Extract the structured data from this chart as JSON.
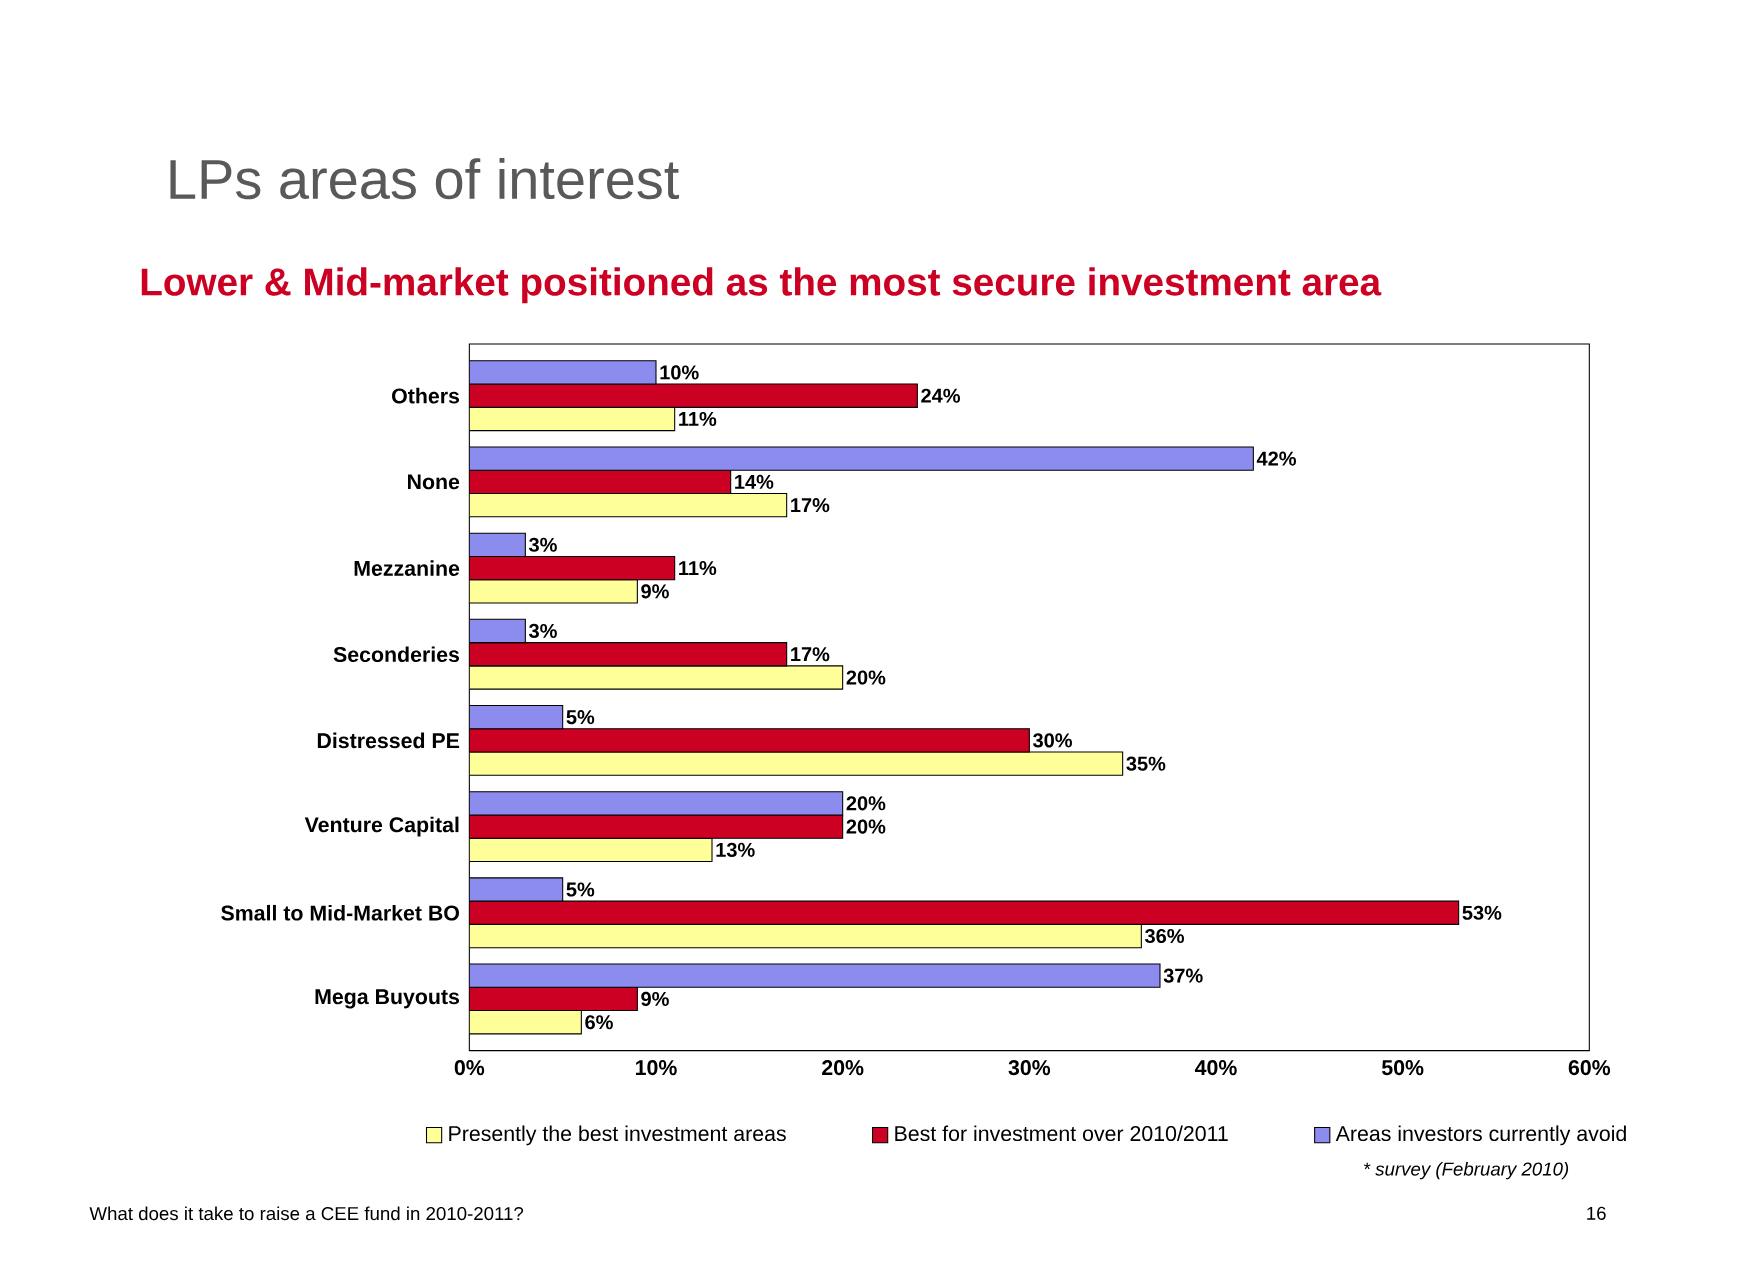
{
  "chart_data": {
    "type": "bar",
    "orientation": "horizontal",
    "title": "LPs areas of interest",
    "subtitle": "Lower & Mid-market positioned as the most secure investment area",
    "categories": [
      "Others",
      "None",
      "Mezzanine",
      "Seconderies",
      "Distressed PE",
      "Venture Capital",
      "Small to Mid-Market BO",
      "Mega Buyouts"
    ],
    "series": [
      {
        "name": "Presently the best investment areas",
        "color": "#ffff99",
        "values": [
          11,
          17,
          9,
          20,
          35,
          13,
          36,
          6
        ],
        "value_labels": [
          "11%",
          "17%",
          "9%",
          "20%",
          "35%",
          "13%",
          "36%",
          "6%"
        ]
      },
      {
        "name": "Best for investment over 2010/2011",
        "color": "#cc0022",
        "values": [
          24,
          14,
          11,
          17,
          30,
          20,
          53,
          9
        ],
        "value_labels": [
          "24%",
          "14%",
          "11%",
          "17%",
          "30%",
          "20%",
          "53%",
          "9%"
        ]
      },
      {
        "name": "Areas investors currently avoid",
        "color": "#8c8cee",
        "values": [
          10,
          42,
          3,
          3,
          5,
          20,
          5,
          37
        ],
        "value_labels": [
          "10%",
          "42%",
          "3%",
          "3%",
          "5%",
          "20%",
          "5%",
          "37%"
        ]
      }
    ],
    "xlim": [
      0,
      60
    ],
    "xticks": [
      {
        "value": 0,
        "label": "0%"
      },
      {
        "value": 10,
        "label": "10%"
      },
      {
        "value": 20,
        "label": "20%"
      },
      {
        "value": 30,
        "label": "30%"
      },
      {
        "value": 40,
        "label": "40%"
      },
      {
        "value": 50,
        "label": "50%"
      },
      {
        "value": 60,
        "label": "60%"
      }
    ],
    "legend": "bottom",
    "annotations": [
      "* survey (February 2010)",
      "What does it take to raise a CEE fund in 2010-2011?",
      "16"
    ]
  }
}
